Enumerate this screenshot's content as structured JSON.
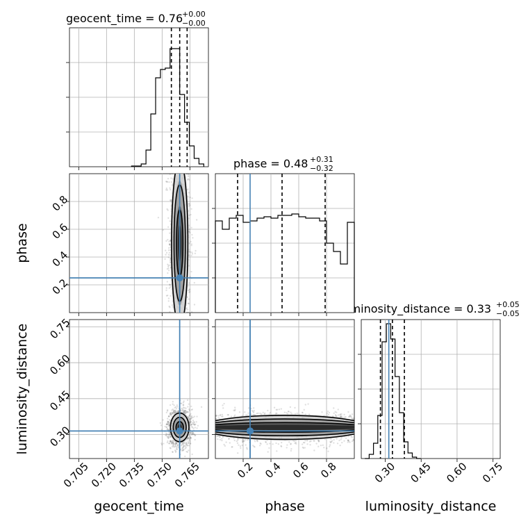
{
  "chart_data": {
    "type": "corner",
    "parameters": [
      "geocent_time",
      "phase",
      "luminosity_distance"
    ],
    "truth": {
      "geocent_time": 0.7595,
      "phase": 0.25,
      "luminosity_distance": 0.315
    },
    "colors": {
      "truth": "#4682b4",
      "hist": "#000000",
      "grid": "#b0b0b0"
    },
    "titles": [
      {
        "label": "geocent_time = 0.76",
        "sup": "+0.00",
        "sub": "−0.00"
      },
      {
        "label": "phase = 0.48",
        "sup": "+0.31",
        "sub": "−0.32"
      },
      {
        "label": "luminosity_distance = 0.33",
        "sup": "+0.05",
        "sub": "−0.05"
      }
    ],
    "axes": {
      "geocent_time": {
        "range": [
          0.7,
          0.775
        ],
        "ticks": [
          "0.705",
          "0.720",
          "0.735",
          "0.750",
          "0.765"
        ],
        "tick_values": [
          0.705,
          0.72,
          0.735,
          0.75,
          0.765
        ]
      },
      "phase": {
        "range": [
          0.0,
          1.0
        ],
        "ticks": [
          "0.2",
          "0.4",
          "0.6",
          "0.8"
        ],
        "tick_values": [
          0.2,
          0.4,
          0.6,
          0.8
        ]
      },
      "luminosity_distance": {
        "range": [
          0.2,
          0.78
        ],
        "ticks": [
          "0.30",
          "0.45",
          "0.60",
          "0.75"
        ],
        "tick_values": [
          0.3,
          0.45,
          0.6,
          0.75
        ]
      }
    },
    "histograms": {
      "geocent_time": {
        "bin_start": 0.7335,
        "bin_width": 0.0026,
        "counts": [
          0.005,
          0.005,
          0.02,
          0.12,
          0.38,
          0.64,
          0.7,
          0.71,
          0.85,
          0.85,
          0.52,
          0.32,
          0.15,
          0.06,
          0.02
        ],
        "quantiles": [
          0.755,
          0.7595,
          0.7635
        ]
      },
      "phase": {
        "bin_start": 0.0,
        "bin_width": 0.05,
        "counts": [
          0.66,
          0.6,
          0.68,
          0.7,
          0.65,
          0.66,
          0.68,
          0.69,
          0.68,
          0.7,
          0.7,
          0.71,
          0.69,
          0.68,
          0.68,
          0.66,
          0.5,
          0.44,
          0.35,
          0.65
        ],
        "quantiles": [
          0.16,
          0.48,
          0.79
        ]
      },
      "luminosity_distance": {
        "bin_start": 0.215,
        "bin_width": 0.018,
        "counts": [
          0.0,
          0.03,
          0.11,
          0.31,
          0.84,
          0.97,
          0.86,
          0.59,
          0.33,
          0.12,
          0.04,
          0.01,
          0.0
        ],
        "quantiles": [
          0.28,
          0.33,
          0.38
        ]
      }
    }
  }
}
